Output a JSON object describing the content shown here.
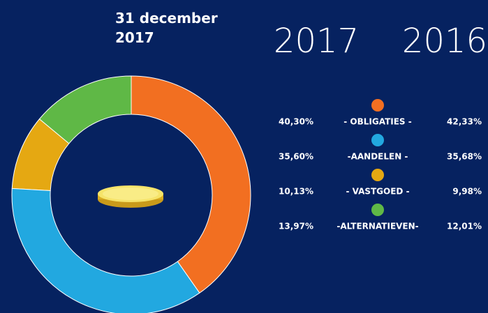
{
  "chart_data": {
    "type": "pie",
    "donut": true,
    "title": "31 december 2017",
    "categories": [
      "- OBLIGATIES -",
      "-AANDELEN -",
      "- VASTGOED -",
      "-ALTERNATIEVEN-"
    ],
    "colors": [
      "#f26f21",
      "#22a8e0",
      "#e5a812",
      "#5fb846"
    ],
    "series": [
      {
        "name": "2017",
        "values": [
          40.3,
          35.6,
          10.13,
          13.97
        ],
        "value_labels": [
          "40,30%",
          "35,60%",
          "10,13%",
          "13,97%"
        ]
      },
      {
        "name": "2016",
        "values": [
          42.33,
          35.68,
          9.98,
          12.01
        ],
        "value_labels": [
          "42,33%",
          "35,68%",
          "9,98%",
          "12,01%"
        ]
      }
    ]
  }
}
